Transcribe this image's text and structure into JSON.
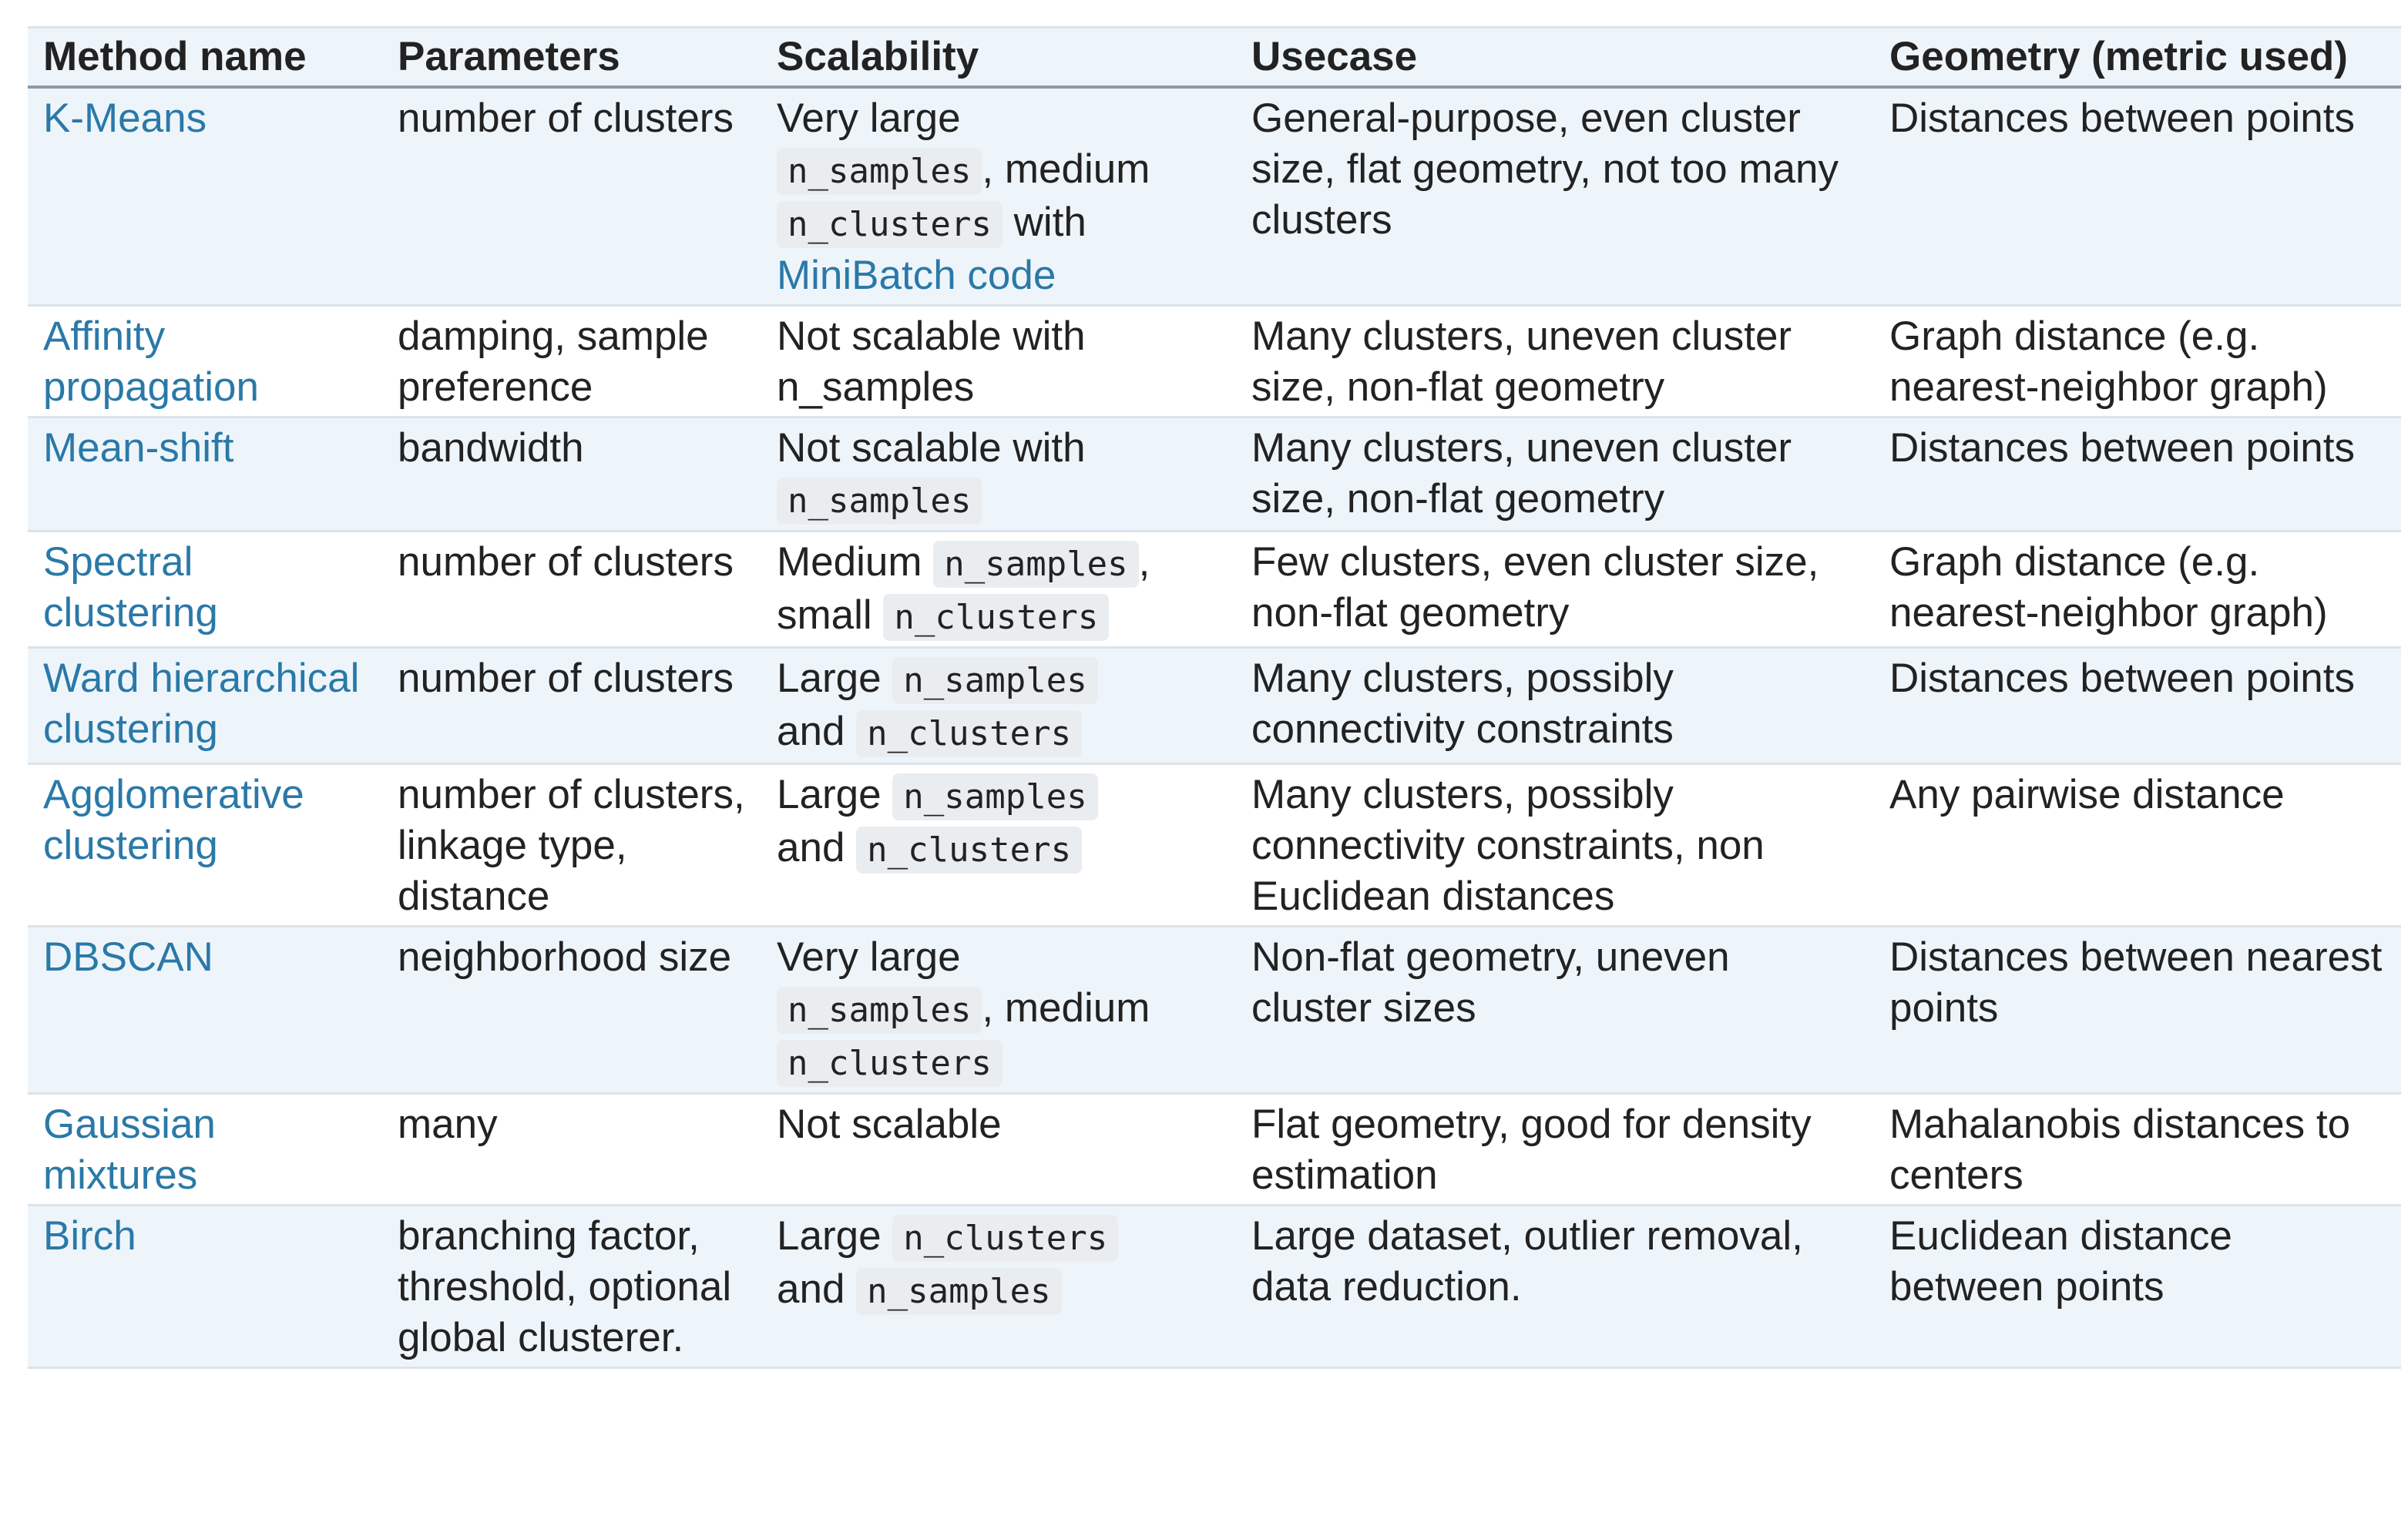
{
  "headers": {
    "method": "Method name",
    "parameters": "Parameters",
    "scalability": "Scalability",
    "usecase": "Usecase",
    "geometry": "Geometry (metric used)"
  },
  "rows": [
    {
      "method": "K-Means",
      "parameters": "number of clusters",
      "scal_a": "Very large",
      "scal_code1": "n_samples",
      "scal_b": ", medium",
      "scal_code2": "n_clusters",
      "scal_c": "with",
      "scal_link": "MiniBatch code",
      "usecase": "General-purpose, even cluster size, flat geometry, not too many clusters",
      "geometry": "Distances between points"
    },
    {
      "method": "Affinity propagation",
      "parameters": "damping, sample preference",
      "scalability": "Not scalable with n_samples",
      "usecase": "Many clusters, uneven cluster size, non-flat geometry",
      "geometry": "Graph distance (e.g. nearest-neighbor graph)"
    },
    {
      "method": "Mean-shift",
      "parameters": "bandwidth",
      "scal_a": "Not scalable with",
      "scal_code1": "n_samples",
      "usecase": "Many clusters, uneven cluster size, non-flat geometry",
      "geometry": "Distances between points"
    },
    {
      "method": "Spectral clustering",
      "parameters": "number of clusters",
      "scal_a": "Medium",
      "scal_code1": "n_samples",
      "scal_b": ", small",
      "scal_code2": "n_clusters",
      "usecase": "Few clusters, even cluster size, non-flat geometry",
      "geometry": "Graph distance (e.g. nearest-neighbor graph)"
    },
    {
      "method": "Ward hierarchical clustering",
      "parameters": "number of clusters",
      "scal_a": "Large",
      "scal_code1": "n_samples",
      "scal_b": "and",
      "scal_code2": "n_clusters",
      "usecase": "Many clusters, possibly connectivity constraints",
      "geometry": "Distances between points"
    },
    {
      "method": "Agglomerative clustering",
      "parameters": "number of clusters, linkage type, distance",
      "scal_a": "Large",
      "scal_code1": "n_samples",
      "scal_b": "and",
      "scal_code2": "n_clusters",
      "usecase": "Many clusters, possibly connectivity constraints, non Euclidean distances",
      "geometry": "Any pairwise distance"
    },
    {
      "method": "DBSCAN",
      "parameters": "neighborhood size",
      "scal_a": "Very large",
      "scal_code1": "n_samples",
      "scal_b": ", medium",
      "scal_code2": "n_clusters",
      "usecase": "Non-flat geometry, uneven cluster sizes",
      "geometry": "Distances between nearest points"
    },
    {
      "method": "Gaussian mixtures",
      "parameters": "many",
      "scalability": "Not scalable",
      "usecase": "Flat geometry, good for density estimation",
      "geometry": "Mahalanobis distances to centers"
    },
    {
      "method": "Birch",
      "parameters": "branching factor, threshold, optional global clusterer.",
      "scal_a": "Large",
      "scal_code1": "n_clusters",
      "scal_b": "and",
      "scal_code2": "n_samples",
      "usecase": "Large dataset, outlier removal, data reduction.",
      "geometry": "Euclidean distance between points"
    }
  ]
}
